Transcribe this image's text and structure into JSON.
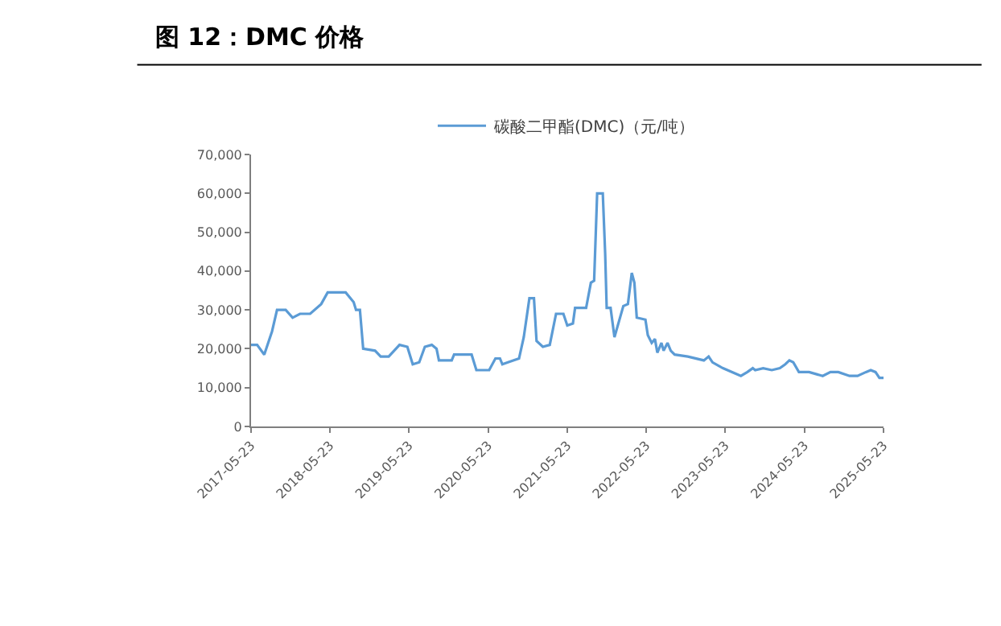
{
  "chart_data": {
    "type": "line",
    "title": "图 12：DMC 价格",
    "legend": "top",
    "marker": "none",
    "line_style": "solid",
    "x": [
      "2017-05-23",
      "2017-06-20",
      "2017-07-23",
      "2017-08-28",
      "2017-09-20",
      "2017-10-30",
      "2017-12-01",
      "2018-01-04",
      "2018-02-20",
      "2018-04-12",
      "2018-05-12",
      "2018-08-03",
      "2018-09-09",
      "2018-09-20",
      "2018-10-08",
      "2018-10-23",
      "2018-12-17",
      "2019-01-12",
      "2019-02-18",
      "2019-04-09",
      "2019-05-15",
      "2019-06-09",
      "2019-07-09",
      "2019-08-04",
      "2019-09-05",
      "2019-09-27",
      "2019-10-08",
      "2019-12-06",
      "2019-12-17",
      "2020-03-07",
      "2020-03-29",
      "2020-05-27",
      "2020-06-25",
      "2020-07-16",
      "2020-07-27",
      "2020-08-22",
      "2020-10-12",
      "2020-11-03",
      "2020-11-29",
      "2020-12-20",
      "2021-01-01",
      "2021-01-30",
      "2021-03-03",
      "2021-04-01",
      "2021-05-05",
      "2021-05-23",
      "2021-06-18",
      "2021-06-28",
      "2021-08-18",
      "2021-09-09",
      "2021-09-24",
      "2021-10-08",
      "2021-11-03",
      "2021-11-14",
      "2021-11-21",
      "2021-12-09",
      "2021-12-27",
      "2022-02-06",
      "2022-02-27",
      "2022-03-17",
      "2022-03-29",
      "2022-04-09",
      "2022-05-19",
      "2022-05-30",
      "2022-06-17",
      "2022-07-02",
      "2022-07-13",
      "2022-08-01",
      "2022-08-11",
      "2022-08-29",
      "2022-09-13",
      "2022-10-01",
      "2022-12-01",
      "2023-02-13",
      "2023-03-07",
      "2023-03-25",
      "2023-05-12",
      "2023-07-13",
      "2023-08-03",
      "2023-09-02",
      "2023-09-27",
      "2023-10-08",
      "2023-11-14",
      "2023-12-24",
      "2024-01-30",
      "2024-02-24",
      "2024-03-14",
      "2024-04-01",
      "2024-04-27",
      "2024-06-13",
      "2024-08-15",
      "2024-09-20",
      "2024-10-26",
      "2024-12-17",
      "2025-01-23",
      "2025-03-03",
      "2025-03-25",
      "2025-04-16",
      "2025-05-04",
      "2025-05-23"
    ],
    "series": [
      {
        "name": "碳酸二甲酯(DMC)（元/吨）",
        "color": "#5b9bd5",
        "values": [
          21000,
          21000,
          18500,
          24500,
          30000,
          30000,
          28000,
          29000,
          29000,
          31500,
          34500,
          34500,
          32000,
          30000,
          30000,
          20000,
          19500,
          18000,
          18000,
          21000,
          20500,
          16000,
          16500,
          20500,
          21000,
          20000,
          17000,
          17000,
          18500,
          18500,
          14500,
          14500,
          17500,
          17500,
          16000,
          16500,
          17500,
          23000,
          33000,
          33000,
          22000,
          20500,
          21000,
          29000,
          29000,
          26000,
          26500,
          30500,
          30500,
          37000,
          37500,
          60000,
          60000,
          44500,
          30500,
          30500,
          23000,
          31000,
          31500,
          39500,
          37000,
          28000,
          27500,
          23500,
          21500,
          22500,
          19000,
          21500,
          19500,
          21500,
          19500,
          18500,
          18000,
          17000,
          18000,
          16500,
          15000,
          13500,
          13000,
          14000,
          15000,
          14500,
          15000,
          14500,
          15000,
          16000,
          17000,
          16500,
          14000,
          14000,
          13000,
          14000,
          14000,
          13000,
          13000,
          14000,
          14500,
          14000,
          12500,
          12500
        ]
      }
    ],
    "xlim": [
      "2017-05-23",
      "2025-05-23"
    ],
    "xticks": [
      "2017-05-23",
      "2018-05-23",
      "2019-05-23",
      "2020-05-23",
      "2021-05-23",
      "2022-05-23",
      "2023-05-23",
      "2024-05-23",
      "2025-05-23"
    ],
    "ylim": [
      0,
      70000
    ],
    "yticks": [
      {
        "value": 0,
        "label": "0"
      },
      {
        "value": 10000,
        "label": "10,000"
      },
      {
        "value": 20000,
        "label": "20,000"
      },
      {
        "value": 30000,
        "label": "30,000"
      },
      {
        "value": 40000,
        "label": "40,000"
      },
      {
        "value": 50000,
        "label": "50,000"
      },
      {
        "value": 60000,
        "label": "60,000"
      },
      {
        "value": 70000,
        "label": "70,000"
      }
    ]
  }
}
